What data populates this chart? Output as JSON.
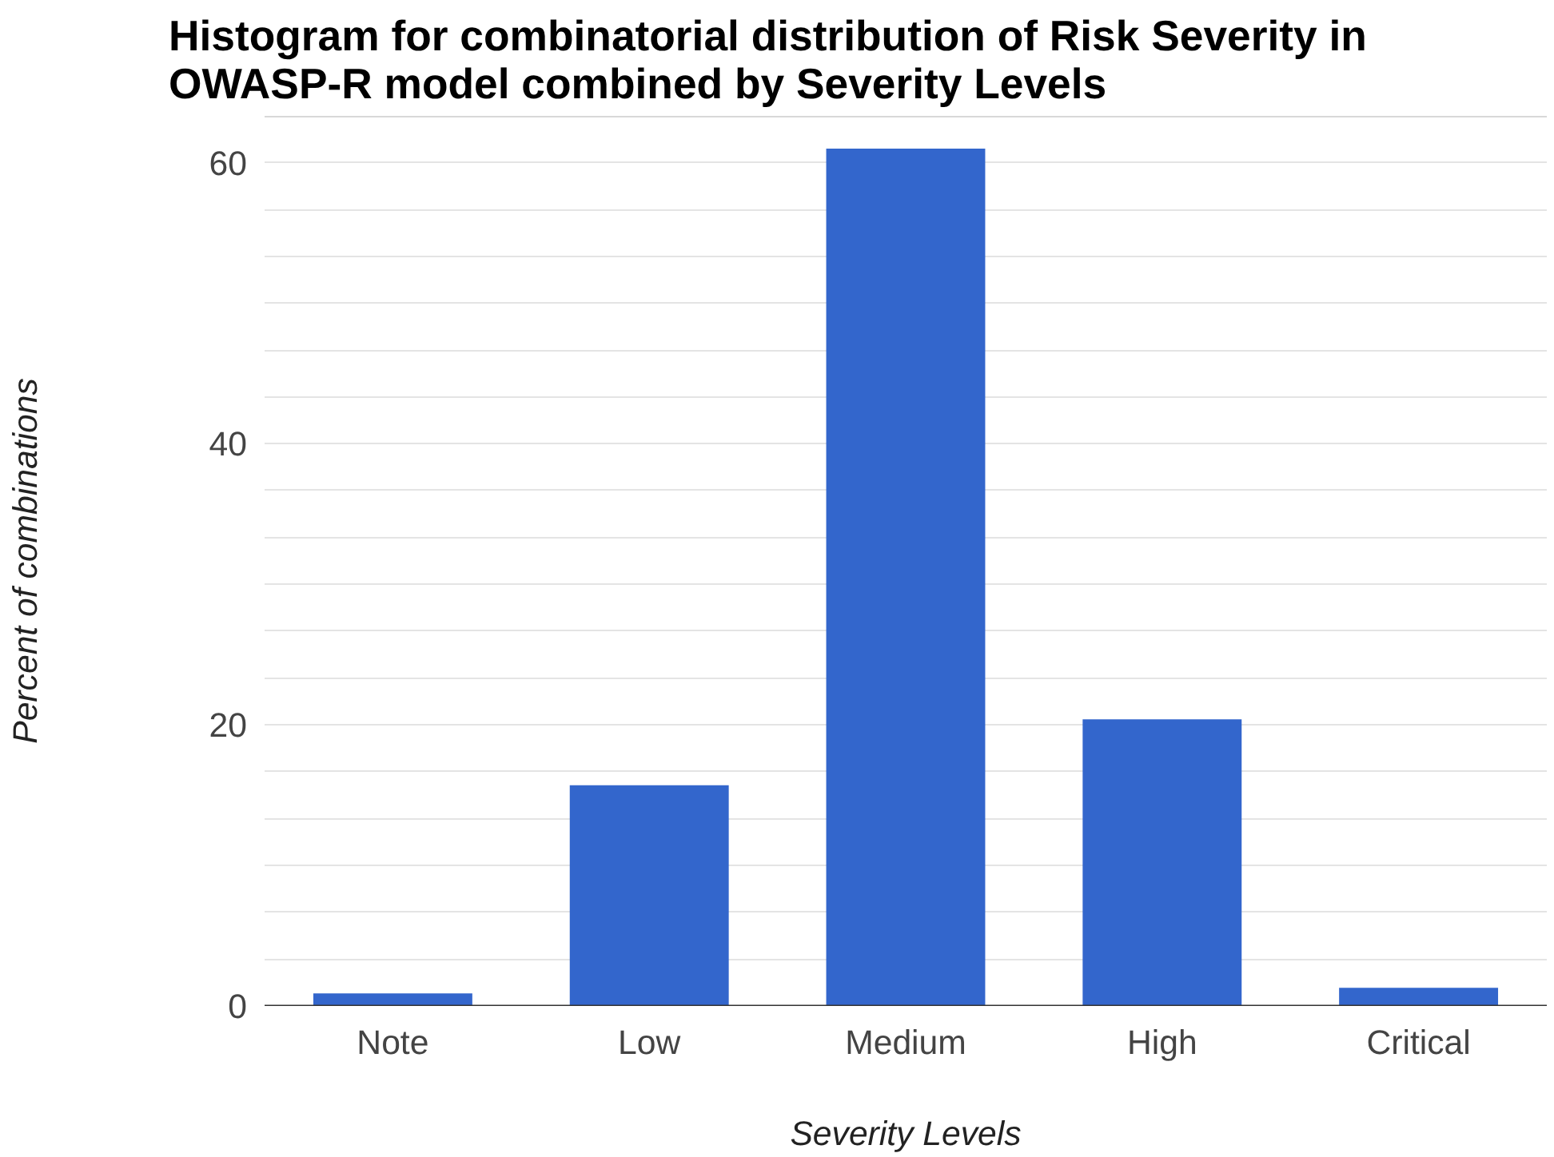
{
  "chart_data": {
    "type": "bar",
    "title": "Histogram for combinatorial distribution of Risk Severity in OWASP-R model combined by Severity Levels",
    "xlabel": "Severity Levels",
    "ylabel": "Percent of combinations",
    "categories": [
      "Note",
      "Low",
      "Medium",
      "High",
      "Critical"
    ],
    "values": [
      0.9,
      15.7,
      61.0,
      20.4,
      1.3
    ],
    "color": "#3366cc",
    "ylim": [
      0,
      63.33
    ],
    "yticks": [
      0,
      {
        "value": 3.33,
        "label": null
      },
      {
        "value": 6.67,
        "label": null
      },
      {
        "value": 10,
        "label": null
      },
      {
        "value": 13.33,
        "label": null
      },
      {
        "value": 16.67,
        "label": null
      },
      20,
      {
        "value": 23.33,
        "label": null
      },
      {
        "value": 26.67,
        "label": null
      },
      {
        "value": 30,
        "label": null
      },
      {
        "value": 33.33,
        "label": null
      },
      {
        "value": 36.67,
        "label": null
      },
      40,
      {
        "value": 43.33,
        "label": null
      },
      {
        "value": 46.67,
        "label": null
      },
      {
        "value": 50,
        "label": null
      },
      {
        "value": 53.33,
        "label": null
      },
      {
        "value": 56.67,
        "label": null
      },
      60,
      {
        "value": 63.33,
        "label": null
      }
    ],
    "grid": "y"
  }
}
